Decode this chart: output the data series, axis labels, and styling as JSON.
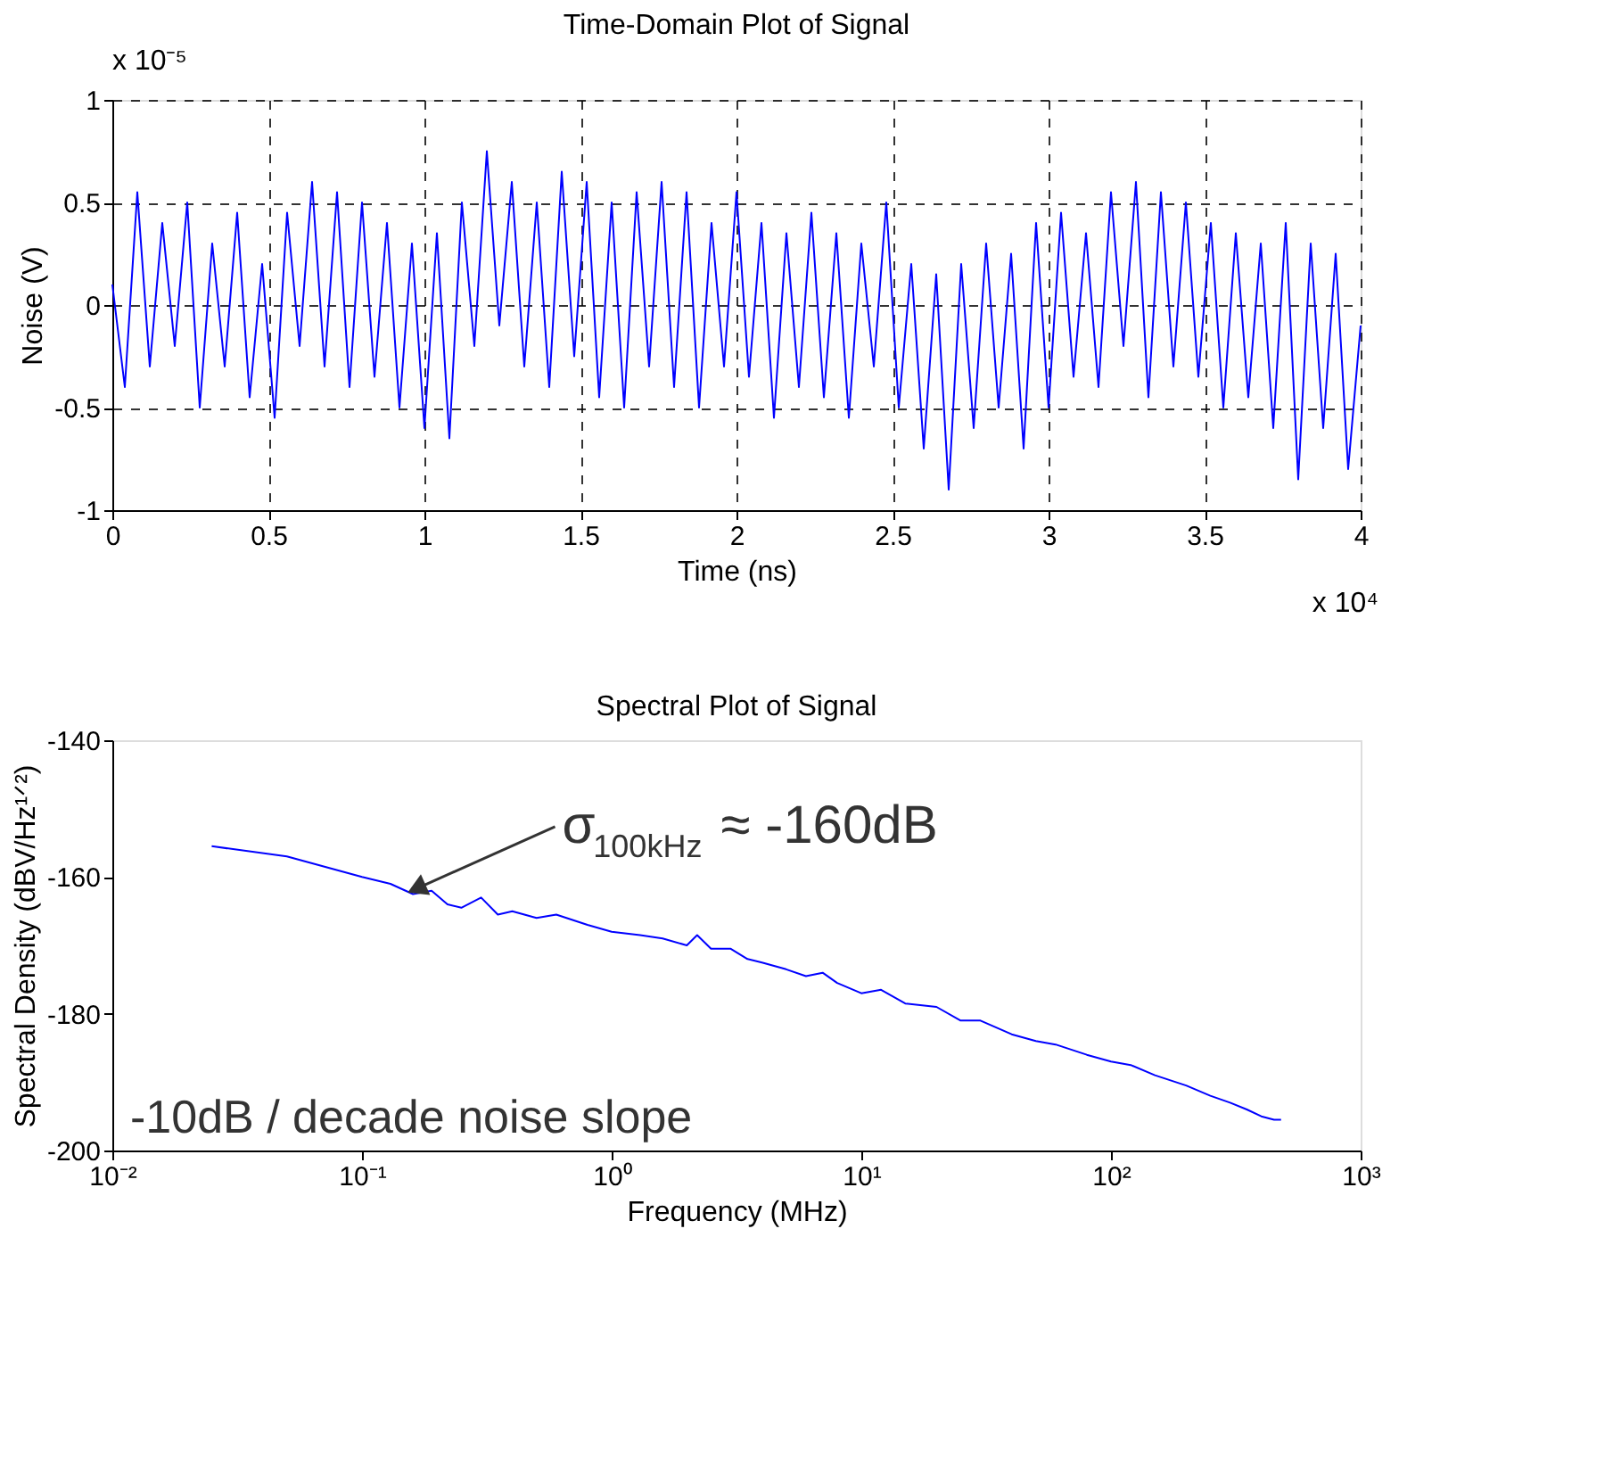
{
  "chart_data": [
    {
      "type": "line",
      "title": "Time-Domain Plot of Signal",
      "xlabel": "Time (ns)",
      "ylabel": "Noise (V)",
      "x": [
        0,
        0.04,
        0.08,
        0.12,
        0.16,
        0.2,
        0.24,
        0.28,
        0.32,
        0.36,
        0.4,
        0.44,
        0.48,
        0.52,
        0.56,
        0.6,
        0.64,
        0.68,
        0.72,
        0.76,
        0.8,
        0.84,
        0.88,
        0.92,
        0.96,
        1,
        1.04,
        1.08,
        1.12,
        1.16,
        1.2,
        1.24,
        1.28,
        1.32,
        1.36,
        1.4,
        1.44,
        1.48,
        1.52,
        1.56,
        1.6,
        1.64,
        1.68,
        1.72,
        1.76,
        1.8,
        1.84,
        1.88,
        1.92,
        1.96,
        2,
        2.04,
        2.08,
        2.12,
        2.16,
        2.2,
        2.24,
        2.28,
        2.32,
        2.36,
        2.4,
        2.44,
        2.48,
        2.52,
        2.56,
        2.6,
        2.64,
        2.68,
        2.72,
        2.76,
        2.8,
        2.84,
        2.88,
        2.92,
        2.96,
        3,
        3.04,
        3.08,
        3.12,
        3.16,
        3.2,
        3.24,
        3.28,
        3.32,
        3.36,
        3.4,
        3.44,
        3.48,
        3.52,
        3.56,
        3.6,
        3.64,
        3.68,
        3.72,
        3.76,
        3.8,
        3.84,
        3.88,
        3.92,
        3.96,
        4
      ],
      "series": [
        {
          "color": "#0000ff",
          "values": [
            0.1,
            -0.4,
            0.55,
            -0.3,
            0.4,
            -0.2,
            0.5,
            -0.5,
            0.3,
            -0.3,
            0.45,
            -0.45,
            0.2,
            -0.55,
            0.45,
            -0.2,
            0.6,
            -0.3,
            0.55,
            -0.4,
            0.5,
            -0.35,
            0.4,
            -0.5,
            0.3,
            -0.6,
            0.35,
            -0.65,
            0.5,
            -0.2,
            0.75,
            -0.1,
            0.6,
            -0.3,
            0.5,
            -0.4,
            0.65,
            -0.25,
            0.6,
            -0.45,
            0.5,
            -0.5,
            0.55,
            -0.3,
            0.6,
            -0.4,
            0.55,
            -0.5,
            0.4,
            -0.3,
            0.55,
            -0.35,
            0.4,
            -0.55,
            0.35,
            -0.4,
            0.45,
            -0.45,
            0.35,
            -0.55,
            0.3,
            -0.3,
            0.5,
            -0.5,
            0.2,
            -0.7,
            0.15,
            -0.9,
            0.2,
            -0.6,
            0.3,
            -0.5,
            0.25,
            -0.7,
            0.4,
            -0.5,
            0.45,
            -0.35,
            0.35,
            -0.4,
            0.55,
            -0.2,
            0.6,
            -0.45,
            0.55,
            -0.3,
            0.5,
            -0.35,
            0.4,
            -0.5,
            0.35,
            -0.45,
            0.3,
            -0.6,
            0.4,
            -0.85,
            0.3,
            -0.6,
            0.25,
            -0.8,
            -0.1
          ]
        }
      ],
      "xlim": [
        0,
        4
      ],
      "ylim": [
        -1,
        1
      ],
      "xticks": [
        0,
        0.5,
        1,
        1.5,
        2,
        2.5,
        3,
        3.5,
        4
      ],
      "yticks": [
        -1,
        -0.5,
        0,
        0.5,
        1
      ],
      "annotations": [
        "x 10⁻⁵",
        "x 10⁴"
      ],
      "grid": true,
      "line_style": "solid",
      "marker": "none"
    },
    {
      "type": "line",
      "title": "Spectral Plot of Signal",
      "xlabel": "Frequency (MHz)",
      "ylabel": "Spectral Density (dBV/Hz¹ᐟ²)",
      "x": [
        0.025,
        0.05,
        0.1,
        0.13,
        0.16,
        0.19,
        0.22,
        0.25,
        0.3,
        0.35,
        0.4,
        0.5,
        0.6,
        0.8,
        1,
        1.3,
        1.6,
        2,
        2.2,
        2.5,
        3,
        3.5,
        4,
        5,
        6,
        7,
        8,
        10,
        12,
        15,
        20,
        25,
        30,
        40,
        50,
        60,
        80,
        100,
        120,
        150,
        200,
        250,
        300,
        350,
        400,
        450,
        480
      ],
      "series": [
        {
          "color": "#0000ff",
          "values": [
            -155.5,
            -157,
            -160,
            -161,
            -162.5,
            -162,
            -164,
            -164.5,
            -163,
            -165.5,
            -165,
            -166,
            -165.5,
            -167,
            -168,
            -168.5,
            -169,
            -170,
            -168.5,
            -170.5,
            -170.5,
            -172,
            -172.5,
            -173.5,
            -174.5,
            -174,
            -175.5,
            -177,
            -176.5,
            -178.5,
            -179,
            -181,
            -181,
            -183,
            -184,
            -184.5,
            -186,
            -187,
            -187.5,
            -189,
            -190.5,
            -192,
            -193,
            -194,
            -195,
            -195.5,
            -195.5
          ]
        }
      ],
      "log": "x",
      "xlim": [
        0.01,
        1000
      ],
      "ylim": [
        -200,
        -140
      ],
      "xticks": [
        {
          "value": 0.01,
          "label": "10⁻²"
        },
        {
          "value": 0.1,
          "label": "10⁻¹"
        },
        {
          "value": 1,
          "label": "10⁰"
        },
        {
          "value": 10,
          "label": "10¹"
        },
        {
          "value": 100,
          "label": "10²"
        },
        {
          "value": 1000,
          "label": "10³"
        }
      ],
      "yticks": [
        -200,
        -180,
        -160,
        -140
      ],
      "annotations": [
        {
          "text": "σ$_{100kHz}$ ≈ -160dB",
          "x": 0.17,
          "y": -161.5
        },
        "-10dB / decade noise slope"
      ],
      "grid": false,
      "line_style": "solid",
      "marker": "none"
    }
  ]
}
